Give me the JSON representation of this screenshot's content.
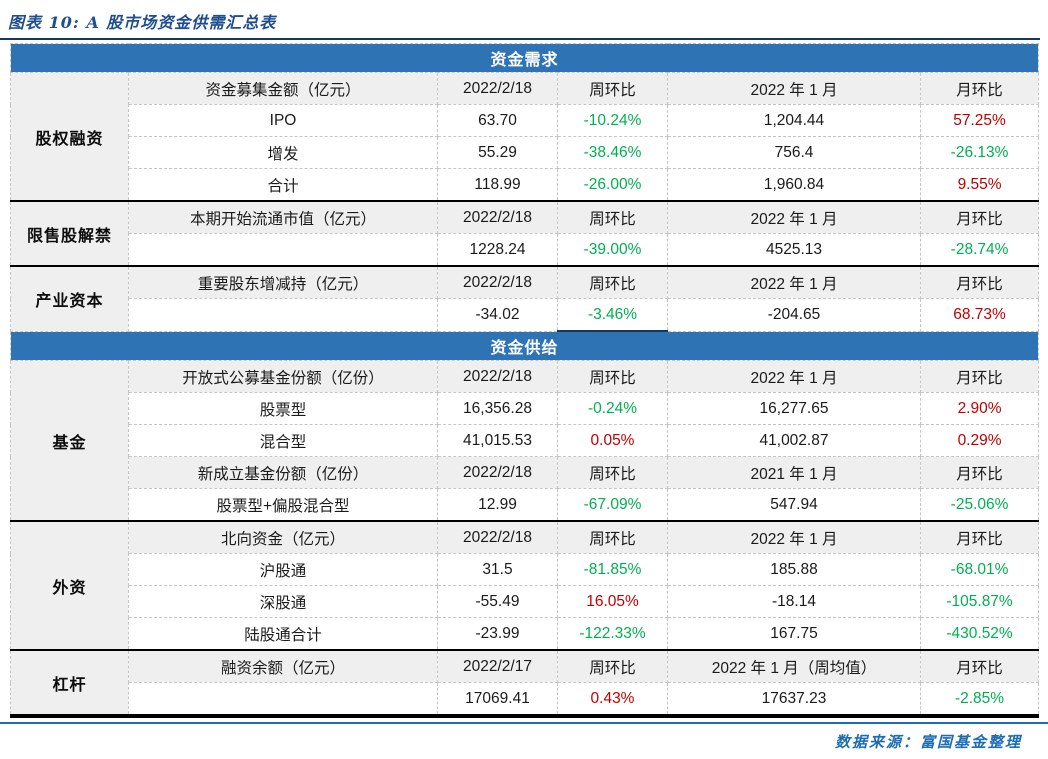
{
  "title": "图表 10: A 股市场资金供需汇总表",
  "source_note": "数据来源：富国基金整理",
  "colors": {
    "banner_blue": "#2E74B5",
    "navy_rule": "#17375E",
    "title_blue": "#1F4E8F",
    "positive_red": "#C00000",
    "negative_green": "#00B050",
    "footer_blue": "#1E6DB3",
    "subheader_gray": "#EFEFEF"
  },
  "banners": {
    "demand": "资金需求",
    "supply": "资金供给"
  },
  "categories": {
    "equity": "股权融资",
    "unlock": "限售股解禁",
    "industrial": "产业资本",
    "funds": "基金",
    "foreign": "外资",
    "leverage": "杠杆"
  },
  "rows": [
    {
      "item": "资金募集金额（亿元）",
      "cur": "2022/2/18",
      "wow": "周环比",
      "mon": "2022 年 1 月",
      "mom": "月环比"
    },
    {
      "item": "IPO",
      "cur": "63.70",
      "wow": "-10.24%",
      "mon": "1,204.44",
      "mom": "57.25%"
    },
    {
      "item": "增发",
      "cur": "55.29",
      "wow": "-38.46%",
      "mon": "756.4",
      "mom": "-26.13%"
    },
    {
      "item": "合计",
      "cur": "118.99",
      "wow": "-26.00%",
      "mon": "1,960.84",
      "mom": "9.55%"
    },
    {
      "item": "本期开始流通市值（亿元）",
      "cur": "2022/2/18",
      "wow": "周环比",
      "mon": "2022 年 1 月",
      "mom": "月环比"
    },
    {
      "item": "",
      "cur": "1228.24",
      "wow": "-39.00%",
      "mon": "4525.13",
      "mom": "-28.74%"
    },
    {
      "item": "重要股东增减持（亿元）",
      "cur": "2022/2/18",
      "wow": "周环比",
      "mon": "2022 年 1 月",
      "mom": "月环比"
    },
    {
      "item": "",
      "cur": "-34.02",
      "wow": "-3.46%",
      "mon": "-204.65",
      "mom": "68.73%"
    },
    {
      "item": "开放式公募基金份额（亿份）",
      "cur": "2022/2/18",
      "wow": "周环比",
      "mon": "2022 年 1 月",
      "mom": "月环比"
    },
    {
      "item": "股票型",
      "cur": "16,356.28",
      "wow": "-0.24%",
      "mon": "16,277.65",
      "mom": "2.90%"
    },
    {
      "item": "混合型",
      "cur": "41,015.53",
      "wow": "0.05%",
      "mon": "41,002.87",
      "mom": "0.29%"
    },
    {
      "item": "新成立基金份额（亿份）",
      "cur": "2022/2/18",
      "wow": "周环比",
      "mon": "2021 年 1 月",
      "mom": "月环比"
    },
    {
      "item": "股票型+偏股混合型",
      "cur": "12.99",
      "wow": "-67.09%",
      "mon": "547.94",
      "mom": "-25.06%"
    },
    {
      "item": "北向资金（亿元）",
      "cur": "2022/2/18",
      "wow": "周环比",
      "mon": "2022 年 1 月",
      "mom": "月环比"
    },
    {
      "item": "沪股通",
      "cur": "31.5",
      "wow": "-81.85%",
      "mon": "185.88",
      "mom": "-68.01%"
    },
    {
      "item": "深股通",
      "cur": "-55.49",
      "wow": "16.05%",
      "mon": "-18.14",
      "mom": "-105.87%"
    },
    {
      "item": "陆股通合计",
      "cur": "-23.99",
      "wow": "-122.33%",
      "mon": "167.75",
      "mom": "-430.52%"
    },
    {
      "item": "融资余额（亿元）",
      "cur": "2022/2/17",
      "wow": "周环比",
      "mon": "2022 年 1 月（周均值）",
      "mom": "月环比"
    },
    {
      "item": "",
      "cur": "17069.41",
      "wow": "0.43%",
      "mon": "17637.23",
      "mom": "-2.85%"
    }
  ]
}
